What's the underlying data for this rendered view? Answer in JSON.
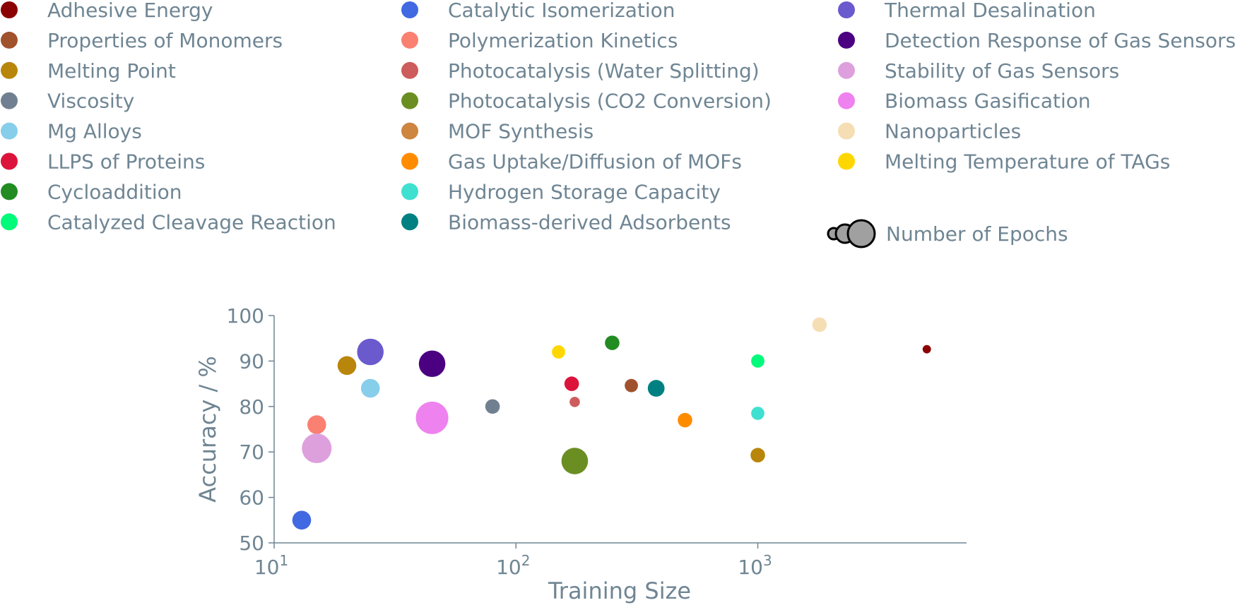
{
  "chart_data": {
    "type": "scatter",
    "title": "",
    "xlabel": "Training Size",
    "ylabel": "Accuracy / %",
    "xscale": "log",
    "xlim": [
      10,
      7300
    ],
    "ylim": [
      50,
      100
    ],
    "xticks": [
      {
        "value": 10,
        "base": "10",
        "exp": "1"
      },
      {
        "value": 100,
        "base": "10",
        "exp": "2"
      },
      {
        "value": 1000,
        "base": "10",
        "exp": "3"
      }
    ],
    "yticks": [
      50,
      60,
      70,
      80,
      90,
      100
    ],
    "grid": false,
    "legend_placement": "top",
    "size_legend_label": "Number of Epochs",
    "series": [
      {
        "name": "Adhesive Energy",
        "color": "#8b0000",
        "points": [
          {
            "x": 5000,
            "y": 92.6,
            "epochs": 2
          }
        ]
      },
      {
        "name": "Properties of Monomers",
        "color": "#a0522d",
        "points": [
          {
            "x": 300,
            "y": 84.6,
            "epochs": 5
          }
        ]
      },
      {
        "name": "Melting Point",
        "color": "#b8860b",
        "points": [
          {
            "x": 20,
            "y": 89,
            "epochs": 10
          },
          {
            "x": 1000,
            "y": 69.3,
            "epochs": 6
          }
        ]
      },
      {
        "name": "Viscosity",
        "color": "#708090",
        "points": [
          {
            "x": 80,
            "y": 80,
            "epochs": 6
          }
        ]
      },
      {
        "name": "Mg Alloys",
        "color": "#87ceeb",
        "points": [
          {
            "x": 25,
            "y": 84,
            "epochs": 10
          }
        ]
      },
      {
        "name": "LLPS of Proteins",
        "color": "#dc143c",
        "points": [
          {
            "x": 170,
            "y": 85,
            "epochs": 6
          }
        ]
      },
      {
        "name": "Cycloaddition",
        "color": "#228b22",
        "points": [
          {
            "x": 250,
            "y": 94,
            "epochs": 6
          }
        ]
      },
      {
        "name": "Catalyzed Cleavage Reaction",
        "color": "#00fa7a",
        "points": [
          {
            "x": 1000,
            "y": 90,
            "epochs": 5
          }
        ]
      },
      {
        "name": "Catalytic Isomerization",
        "color": "#4169e1",
        "points": [
          {
            "x": 13,
            "y": 55,
            "epochs": 10
          }
        ]
      },
      {
        "name": "Polymerization Kinetics",
        "color": "#fa8072",
        "points": [
          {
            "x": 15,
            "y": 76,
            "epochs": 10
          }
        ]
      },
      {
        "name": "Photocatalysis (Water Splitting)",
        "color": "#cd5c5c",
        "points": [
          {
            "x": 175,
            "y": 81,
            "epochs": 3
          }
        ]
      },
      {
        "name": "Photocatalysis (CO2 Conversion)",
        "color": "#6b8e23",
        "points": [
          {
            "x": 175,
            "y": 68,
            "epochs": 20
          }
        ]
      },
      {
        "name": "MOF Synthesis",
        "color": "#cd853f",
        "points": []
      },
      {
        "name": "Gas Uptake/Diffusion of MOFs",
        "color": "#ff8c00",
        "points": [
          {
            "x": 500,
            "y": 77,
            "epochs": 6
          }
        ]
      },
      {
        "name": "Hydrogen Storage Capacity",
        "color": "#40e0d0",
        "points": [
          {
            "x": 1000,
            "y": 78.5,
            "epochs": 5
          }
        ]
      },
      {
        "name": "Biomass-derived Adsorbents",
        "color": "#008080",
        "points": [
          {
            "x": 380,
            "y": 84,
            "epochs": 8
          }
        ]
      },
      {
        "name": "Thermal Desalination",
        "color": "#6a5acd",
        "points": [
          {
            "x": 25,
            "y": 92,
            "epochs": 20
          }
        ]
      },
      {
        "name": "Detection Response of Gas Sensors",
        "color": "#4b0082",
        "points": [
          {
            "x": 45,
            "y": 89.4,
            "epochs": 20
          }
        ]
      },
      {
        "name": "Stability of Gas Sensors",
        "color": "#dda0dd",
        "points": [
          {
            "x": 15,
            "y": 70.8,
            "epochs": 25
          }
        ]
      },
      {
        "name": "Biomass Gasification",
        "color": "#ee82ee",
        "points": [
          {
            "x": 45,
            "y": 77.5,
            "epochs": 30
          }
        ]
      },
      {
        "name": "Nanoparticles",
        "color": "#f5deb3",
        "points": [
          {
            "x": 1800,
            "y": 98,
            "epochs": 6
          }
        ]
      },
      {
        "name": "Melting Temperature of TAGs",
        "color": "#ffd700",
        "points": [
          {
            "x": 150,
            "y": 92,
            "epochs": 5
          }
        ]
      }
    ]
  }
}
